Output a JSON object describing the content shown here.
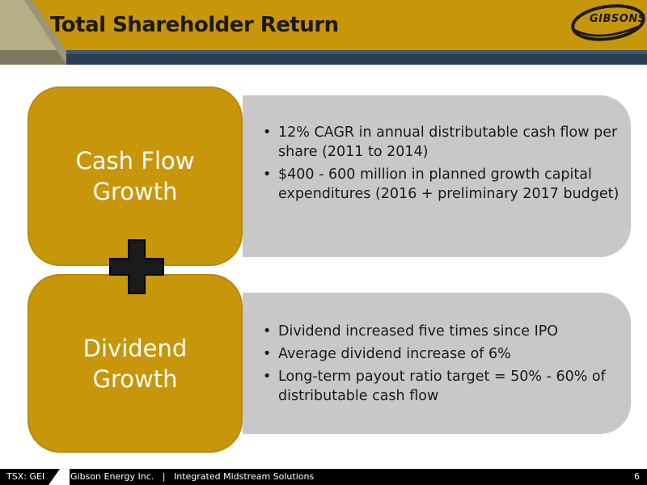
{
  "header": {
    "title": "Total Shareholder Return",
    "logo_text": "GIBSONS",
    "colors": {
      "gold": "#c8960a",
      "navy": "#2a3f55"
    }
  },
  "sections": [
    {
      "label_line1": "Cash Flow",
      "label_line2": "Growth",
      "bullets": [
        "12% CAGR in annual distributable cash flow per share (2011 to 2014)",
        "$400 - 600 million in planned growth capital expenditures (2016 + preliminary 2017 budget)"
      ]
    },
    {
      "label_line1": "Dividend",
      "label_line2": "Growth",
      "bullets": [
        "Dividend increased five times since IPO",
        "Average dividend increase of 6%",
        "Long-term payout ratio target = 50% - 60% of distributable cash flow"
      ]
    }
  ],
  "plus_icon": "plus-icon",
  "footer": {
    "ticker": "TSX: GEI",
    "company": "Gibson Energy Inc.",
    "separator": "|",
    "tagline": "Integrated Midstream Solutions",
    "page_number": "6"
  }
}
